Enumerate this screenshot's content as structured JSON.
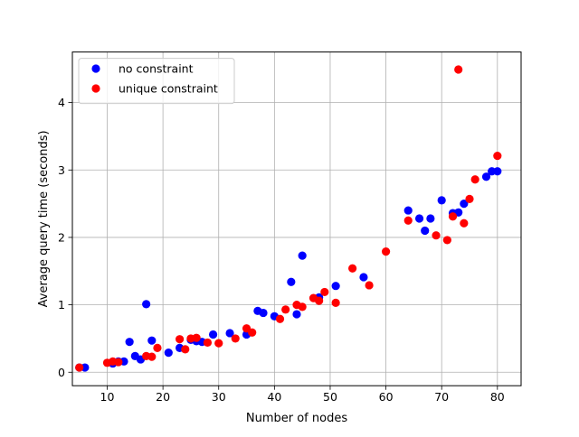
{
  "chart_data": {
    "type": "scatter",
    "title": "",
    "xlabel": "Number of nodes",
    "ylabel": "Average query time (seconds)",
    "xlim": [
      3.75,
      84.25
    ],
    "ylim": [
      -0.2,
      4.75
    ],
    "xticks": [
      10,
      20,
      30,
      40,
      50,
      60,
      70,
      80
    ],
    "yticks": [
      0,
      1,
      2,
      3,
      4
    ],
    "grid": true,
    "legend_position": "top-left",
    "series": [
      {
        "name": "no constraint",
        "color": "#0000ff",
        "points": [
          [
            5,
            0.07
          ],
          [
            6,
            0.07
          ],
          [
            11,
            0.13
          ],
          [
            12,
            0.16
          ],
          [
            13,
            0.16
          ],
          [
            14,
            0.45
          ],
          [
            15,
            0.24
          ],
          [
            16,
            0.19
          ],
          [
            17,
            1.01
          ],
          [
            18,
            0.47
          ],
          [
            21,
            0.29
          ],
          [
            23,
            0.36
          ],
          [
            25,
            0.48
          ],
          [
            26,
            0.46
          ],
          [
            27,
            0.45
          ],
          [
            29,
            0.56
          ],
          [
            32,
            0.58
          ],
          [
            35,
            0.56
          ],
          [
            37,
            0.91
          ],
          [
            38,
            0.88
          ],
          [
            40,
            0.83
          ],
          [
            43,
            1.34
          ],
          [
            44,
            0.86
          ],
          [
            45,
            1.73
          ],
          [
            48,
            1.11
          ],
          [
            51,
            1.28
          ],
          [
            56,
            1.41
          ],
          [
            64,
            2.4
          ],
          [
            66,
            2.28
          ],
          [
            67,
            2.1
          ],
          [
            68,
            2.28
          ],
          [
            70,
            2.55
          ],
          [
            72,
            2.36
          ],
          [
            73,
            2.37
          ],
          [
            74,
            2.5
          ],
          [
            78,
            2.9
          ],
          [
            79,
            2.98
          ],
          [
            80,
            2.98
          ]
        ]
      },
      {
        "name": "unique constraint",
        "color": "#ff0000",
        "points": [
          [
            5,
            0.07
          ],
          [
            10,
            0.14
          ],
          [
            11,
            0.16
          ],
          [
            12,
            0.15
          ],
          [
            17,
            0.24
          ],
          [
            18,
            0.23
          ],
          [
            19,
            0.36
          ],
          [
            23,
            0.49
          ],
          [
            24,
            0.34
          ],
          [
            25,
            0.5
          ],
          [
            26,
            0.51
          ],
          [
            28,
            0.44
          ],
          [
            30,
            0.43
          ],
          [
            33,
            0.5
          ],
          [
            35,
            0.65
          ],
          [
            36,
            0.59
          ],
          [
            41,
            0.79
          ],
          [
            42,
            0.93
          ],
          [
            44,
            1.0
          ],
          [
            45,
            0.97
          ],
          [
            47,
            1.1
          ],
          [
            48,
            1.06
          ],
          [
            49,
            1.19
          ],
          [
            51,
            1.03
          ],
          [
            54,
            1.54
          ],
          [
            57,
            1.29
          ],
          [
            60,
            1.79
          ],
          [
            64,
            2.25
          ],
          [
            69,
            2.03
          ],
          [
            71,
            1.96
          ],
          [
            72,
            2.31
          ],
          [
            73,
            4.49
          ],
          [
            74,
            2.21
          ],
          [
            75,
            2.57
          ],
          [
            76,
            2.86
          ],
          [
            80,
            3.21
          ]
        ]
      }
    ]
  }
}
